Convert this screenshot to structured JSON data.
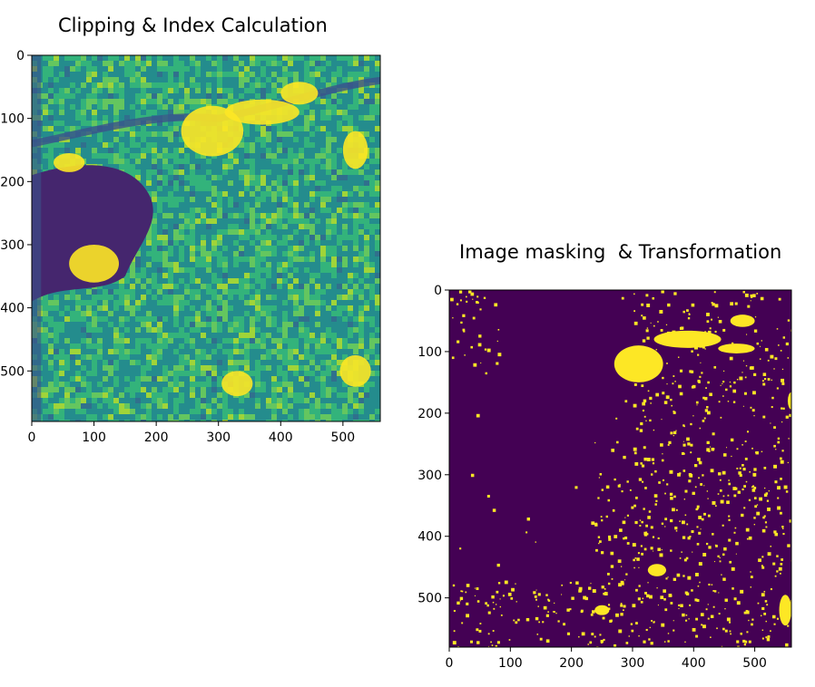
{
  "figure": {
    "captions": [
      "Clipping & Index Calculation",
      "Image masking  & Transformation"
    ]
  },
  "colors": {
    "viridis_low": "#440154",
    "viridis_mid": "#21918c",
    "viridis_high": "#fde725",
    "mask_low": "#440154",
    "mask_high": "#fde725"
  },
  "chart_data": [
    {
      "type": "heatmap",
      "title": "Clipping & Index Calculation",
      "xlabel": "",
      "ylabel": "",
      "xlim": [
        0,
        560
      ],
      "ylim": [
        580,
        0
      ],
      "x_ticks": [
        0,
        100,
        200,
        300,
        400,
        500
      ],
      "y_ticks": [
        0,
        100,
        200,
        300,
        400,
        500
      ],
      "x_tick_labels": [
        "0",
        "100",
        "200",
        "300",
        "400",
        "500"
      ],
      "y_tick_labels": [
        "0",
        "100",
        "200",
        "300",
        "400",
        "500"
      ],
      "colormap": "viridis",
      "grid": false
    },
    {
      "type": "heatmap",
      "title": "Image masking  & Transformation",
      "xlabel": "",
      "ylabel": "",
      "xlim": [
        0,
        560
      ],
      "ylim": [
        580,
        0
      ],
      "x_ticks": [
        0,
        100,
        200,
        300,
        400,
        500
      ],
      "y_ticks": [
        0,
        100,
        200,
        300,
        400,
        500
      ],
      "x_tick_labels": [
        "0",
        "100",
        "200",
        "300",
        "400",
        "500"
      ],
      "y_tick_labels": [
        "0",
        "100",
        "200",
        "300",
        "400",
        "500"
      ],
      "colormap": "binary viridis",
      "grid": false
    }
  ]
}
